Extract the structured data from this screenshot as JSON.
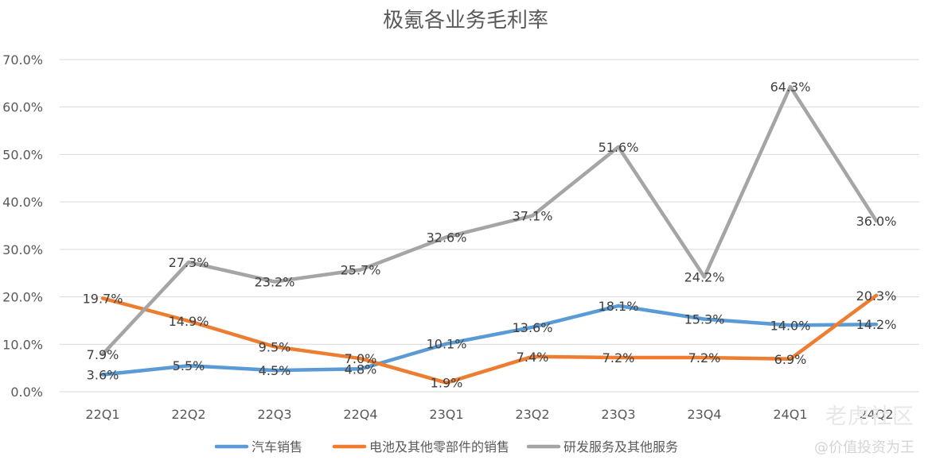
{
  "chart_data": {
    "type": "line",
    "title": "极氪各业务毛利率",
    "categories": [
      "22Q1",
      "22Q2",
      "22Q3",
      "22Q4",
      "23Q1",
      "23Q2",
      "23Q3",
      "23Q4",
      "24Q1",
      "24Q2"
    ],
    "ylim": [
      0,
      70
    ],
    "yticks": [
      "0.0%",
      "10.0%",
      "20.0%",
      "30.0%",
      "40.0%",
      "50.0%",
      "60.0%",
      "70.0%"
    ],
    "grid": true,
    "legend_position": "bottom",
    "series": [
      {
        "name": "汽车销售",
        "color": "#5b9bd5",
        "values": [
          3.6,
          5.5,
          4.5,
          4.8,
          10.1,
          13.6,
          18.1,
          15.3,
          14.0,
          14.2
        ],
        "labels": [
          "3.6%",
          "5.5%",
          "4.5%",
          "4.8%",
          "10.1%",
          "13.6%",
          "18.1%",
          "15.3%",
          "14.0%",
          "14.2%"
        ]
      },
      {
        "name": "电池及其他零部件的销售",
        "color": "#ed7d31",
        "values": [
          19.7,
          14.9,
          9.5,
          7.0,
          1.9,
          7.4,
          7.2,
          7.2,
          6.9,
          20.3
        ],
        "labels": [
          "19.7%",
          "14.9%",
          "9.5%",
          "7.0%",
          "1.9%",
          "7.4%",
          "7.2%",
          "7.2%",
          "6.9%",
          "20.3%"
        ]
      },
      {
        "name": "研发服务及其他服务",
        "color": "#a5a5a5",
        "values": [
          7.9,
          27.3,
          23.2,
          25.7,
          32.6,
          37.1,
          51.6,
          24.2,
          64.3,
          36.0
        ],
        "labels": [
          "7.9%",
          "27.3%",
          "23.2%",
          "25.7%",
          "32.6%",
          "37.1%",
          "51.6%",
          "24.2%",
          "64.3%",
          "36.0%"
        ]
      }
    ]
  },
  "watermark": {
    "logo_text": "老虎社区",
    "user_text": "@价值投资为王"
  }
}
